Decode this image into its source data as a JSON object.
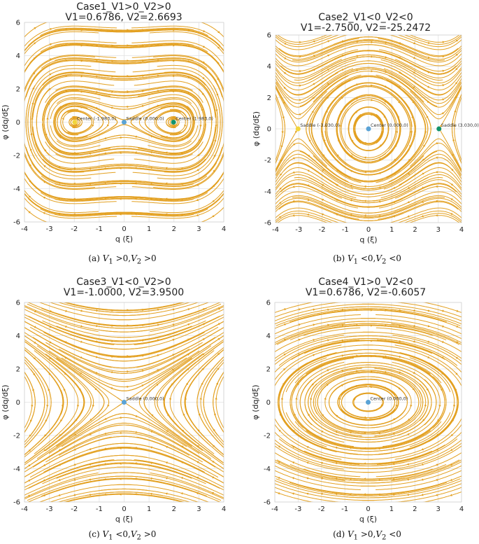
{
  "colors": {
    "stream": "#e3a020",
    "grid": "#e2e2e2",
    "axis": "#222222"
  },
  "chart_data": [
    {
      "type": "streamplot",
      "title_line1": "Case1_V1>0_V2>0",
      "title_line2": "V1=0.6786, V2=2.6693",
      "xlabel": "q (ξ)",
      "ylabel": "φ (dq/dξ)",
      "xlim": [
        -4,
        4
      ],
      "ylim": [
        -6,
        6
      ],
      "xticks": [
        "-4",
        "-3",
        "-2",
        "-1",
        "0",
        "1",
        "2",
        "3",
        "4"
      ],
      "yticks": [
        "-6",
        "-4",
        "-2",
        "0",
        "2",
        "4",
        "6"
      ],
      "grid": true,
      "V1": 0.6786,
      "V2": 2.6693,
      "equilibria": [
        {
          "label": "Center (-1.983,0)",
          "q": -1.983,
          "color": "#f2d53c"
        },
        {
          "label": "Saddle (0.000,0)",
          "q": 0.0,
          "color": "#5aa3d6"
        },
        {
          "label": "Center (1.983,0)",
          "q": 1.983,
          "color": "#12936b"
        }
      ],
      "caption": "(a) V1 > 0,V2 > 0",
      "caption_tex": [
        "(a) ",
        "V",
        "1",
        " >0,",
        "V",
        "2",
        " >0"
      ]
    },
    {
      "type": "streamplot",
      "title_line1": "Case2_V1<0_V2<0",
      "title_line2": "V1=-2.7500, V2=-25.2472",
      "xlabel": "q (ξ)",
      "ylabel": "φ (dq/dξ)",
      "xlim": [
        -4,
        4
      ],
      "ylim": [
        -6,
        6
      ],
      "xticks": [
        "-4",
        "-3",
        "-2",
        "-1",
        "0",
        "1",
        "2",
        "3",
        "4"
      ],
      "yticks": [
        "-6",
        "-4",
        "-2",
        "0",
        "2",
        "4",
        "6"
      ],
      "grid": true,
      "V1": -2.75,
      "V2": -25.2472,
      "equilibria": [
        {
          "label": "Saddle (-3.030,0)",
          "q": -3.03,
          "color": "#f2d53c"
        },
        {
          "label": "Center (0.000,0)",
          "q": 0.0,
          "color": "#5aa3d6"
        },
        {
          "label": "Saddle (3.030,0)",
          "q": 3.03,
          "color": "#12936b"
        }
      ],
      "caption": "(b) V1 < 0,V2 < 0",
      "caption_tex": [
        "(b) ",
        "V",
        "1",
        " <0,",
        "V",
        "2",
        " <0"
      ]
    },
    {
      "type": "streamplot",
      "title_line1": "Case3_V1<0_V2>0",
      "title_line2": "V1=-1.0000, V2=3.9500",
      "xlabel": "q (ξ)",
      "ylabel": "φ (dq/dξ)",
      "xlim": [
        -4,
        4
      ],
      "ylim": [
        -6,
        6
      ],
      "xticks": [
        "-4",
        "-3",
        "-2",
        "-1",
        "0",
        "1",
        "2",
        "3",
        "4"
      ],
      "yticks": [
        "-6",
        "-4",
        "-2",
        "0",
        "2",
        "4",
        "6"
      ],
      "grid": true,
      "V1": -1.0,
      "V2": 3.95,
      "equilibria": [
        {
          "label": "Saddle (0.000,0)",
          "q": 0.0,
          "color": "#5aa3d6"
        }
      ],
      "caption": "(c) V1 < 0,V2 > 0",
      "caption_tex": [
        "(c) ",
        "V",
        "1",
        " <0,",
        "V",
        "2",
        " >0"
      ]
    },
    {
      "type": "streamplot",
      "title_line1": "Case4_V1>0_V2<0",
      "title_line2": "V1=0.6786, V2=-0.6057",
      "xlabel": "q (ξ)",
      "ylabel": "φ (dq/dξ)",
      "xlim": [
        -4,
        4
      ],
      "ylim": [
        -6,
        6
      ],
      "xticks": [
        "-4",
        "-3",
        "-2",
        "-1",
        "0",
        "1",
        "2",
        "3",
        "4"
      ],
      "yticks": [
        "-6",
        "-4",
        "-2",
        "0",
        "2",
        "4",
        "6"
      ],
      "grid": true,
      "V1": 0.6786,
      "V2": -0.6057,
      "equilibria": [
        {
          "label": "Center (0.000,0)",
          "q": 0.0,
          "color": "#5aa3d6"
        }
      ],
      "caption": "(d) V1 > 0,V2 < 0",
      "caption_tex": [
        "(d) ",
        "V",
        "1",
        " >0,",
        "V",
        "2",
        " <0"
      ]
    }
  ]
}
